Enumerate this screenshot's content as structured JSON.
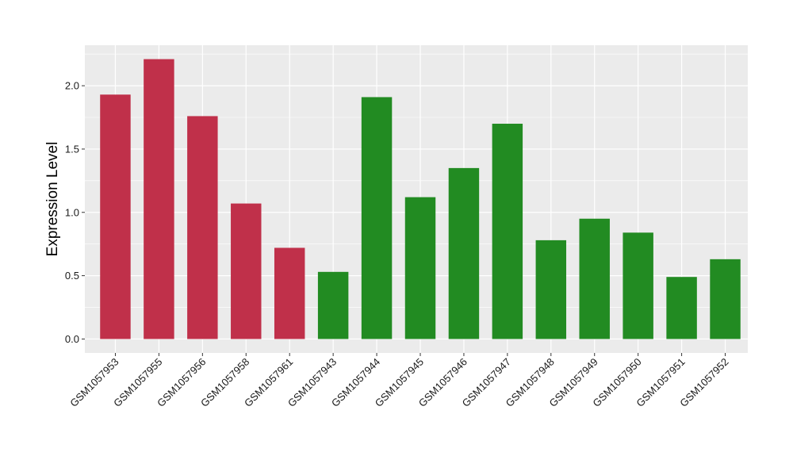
{
  "chart_data": {
    "type": "bar",
    "title": "",
    "xlabel": "",
    "ylabel": "Expression Level",
    "ylim": [
      -0.11,
      2.32
    ],
    "y_ticks": [
      0.0,
      0.5,
      1.0,
      1.5,
      2.0
    ],
    "y_tick_labels": [
      "0.0",
      "0.5",
      "1.0",
      "1.5",
      "2.0"
    ],
    "categories": [
      "GSM1057953",
      "GSM1057955",
      "GSM1057956",
      "GSM1057958",
      "GSM1057961",
      "GSM1057943",
      "GSM1057944",
      "GSM1057945",
      "GSM1057946",
      "GSM1057947",
      "GSM1057948",
      "GSM1057949",
      "GSM1057950",
      "GSM1057951",
      "GSM1057952"
    ],
    "values": [
      1.93,
      2.21,
      1.76,
      1.07,
      0.72,
      0.53,
      1.91,
      1.12,
      1.35,
      1.7,
      0.78,
      0.95,
      0.84,
      0.49,
      0.63
    ],
    "bar_groups": [
      "red",
      "red",
      "red",
      "red",
      "red",
      "green",
      "green",
      "green",
      "green",
      "green",
      "green",
      "green",
      "green",
      "green",
      "green"
    ],
    "colors": {
      "red": "#c0304a",
      "green": "#228b22",
      "panel_background": "#ebebeb",
      "grid": "#ffffff",
      "axis_text": "#1a1a1a"
    },
    "grid": true,
    "legend": "none"
  }
}
